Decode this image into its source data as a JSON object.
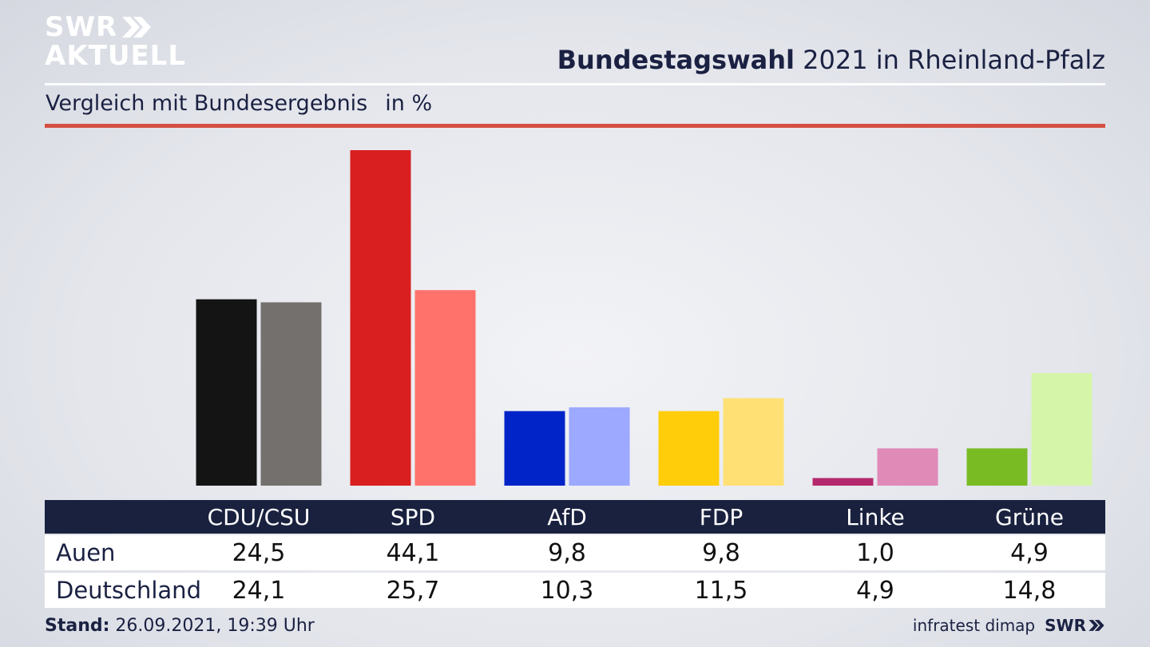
{
  "logo": {
    "line1": "SWR",
    "line2": "AKTUELL"
  },
  "headline": {
    "bold": "Bundestagswahl",
    "rest": "2021 in Rheinland-Pfalz"
  },
  "subtitle": {
    "text": "Vergleich mit Bundesergebnis",
    "unit": "in %"
  },
  "colors": {
    "navy": "#19213f",
    "accent_rule": "#d55043"
  },
  "chart_data": {
    "type": "bar",
    "categories": [
      "CDU/CSU",
      "SPD",
      "AfD",
      "FDP",
      "Linke",
      "Grüne"
    ],
    "series": [
      {
        "name": "Auen",
        "values": [
          24.5,
          44.1,
          9.8,
          9.8,
          1.0,
          4.9
        ],
        "colors": [
          "#141414",
          "#d91f1f",
          "#0024c8",
          "#ffcd0a",
          "#b4296d",
          "#79bb22"
        ]
      },
      {
        "name": "Deutschland",
        "values": [
          24.1,
          25.7,
          10.3,
          11.5,
          4.9,
          14.8
        ],
        "colors": [
          "#74706d",
          "#ff726b",
          "#9da9ff",
          "#ffe075",
          "#e08ab8",
          "#d5f5a9"
        ]
      }
    ],
    "ylim": [
      0,
      44.1
    ],
    "grid": false,
    "legend": "table-below"
  },
  "table": {
    "headers": [
      "CDU/CSU",
      "SPD",
      "AfD",
      "FDP",
      "Linke",
      "Grüne"
    ],
    "rows": [
      {
        "label": "Auen",
        "values": [
          "24,5",
          "44,1",
          "9,8",
          "9,8",
          "1,0",
          "4,9"
        ]
      },
      {
        "label": "Deutschland",
        "values": [
          "24,1",
          "25,7",
          "10,3",
          "11,5",
          "4,9",
          "14,8"
        ]
      }
    ]
  },
  "footer": {
    "stand_label": "Stand:",
    "stand_value": "26.09.2021, 19:39 Uhr",
    "source": "infratest dimap",
    "brand": "SWR"
  }
}
